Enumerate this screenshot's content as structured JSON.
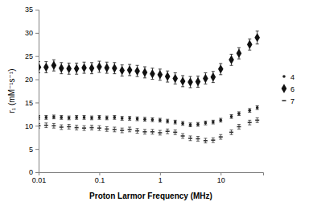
{
  "chart_data": {
    "type": "scatter",
    "x_label": "Proton Larmor Frequency (MHz)",
    "y_label": "r₁ (mM⁻¹s⁻¹)",
    "log": "x",
    "grid": false,
    "legend": "right",
    "xlim": [
      0.01,
      50
    ],
    "xticks": [
      0.01,
      0.1,
      1,
      10
    ],
    "ylim": [
      0,
      35
    ],
    "yticks": [
      0,
      5,
      10,
      15,
      20,
      25,
      30,
      35
    ],
    "x": [
      0.01,
      0.0133,
      0.0178,
      0.0237,
      0.0316,
      0.0422,
      0.0562,
      0.075,
      0.1,
      0.133,
      0.178,
      0.237,
      0.316,
      0.422,
      0.562,
      0.75,
      1,
      1.33,
      1.78,
      2.37,
      3.16,
      4.22,
      5.62,
      7.5,
      10,
      15,
      20,
      30,
      40
    ],
    "series": [
      {
        "name": "4",
        "color": "#222222",
        "marker": "circle",
        "values": [
          11.8,
          11.8,
          11.9,
          11.8,
          11.7,
          11.8,
          11.8,
          11.7,
          11.8,
          11.7,
          11.8,
          11.6,
          11.6,
          11.5,
          11.4,
          11.3,
          11.2,
          11.0,
          10.8,
          10.5,
          10.2,
          10.3,
          10.6,
          10.8,
          11.2,
          12.0,
          12.6,
          13.3,
          13.9
        ],
        "errors": [
          0.4,
          0.4,
          0.4,
          0.4,
          0.4,
          0.4,
          0.4,
          0.4,
          0.4,
          0.4,
          0.4,
          0.4,
          0.4,
          0.4,
          0.4,
          0.4,
          0.4,
          0.4,
          0.4,
          0.4,
          0.4,
          0.4,
          0.4,
          0.4,
          0.4,
          0.4,
          0.4,
          0.4,
          0.4
        ]
      },
      {
        "name": "6",
        "color": "#111111",
        "marker": "diamond",
        "values": [
          22.6,
          22.6,
          23.0,
          22.4,
          22.3,
          22.3,
          22.5,
          22.4,
          22.7,
          22.5,
          22.4,
          21.9,
          22.0,
          21.8,
          21.5,
          21.2,
          21.0,
          20.6,
          20.2,
          19.6,
          19.4,
          19.5,
          20.2,
          20.5,
          22.2,
          24.2,
          25.6,
          27.5,
          29.0
        ],
        "errors": [
          1.2,
          1.2,
          1.2,
          1.2,
          1.2,
          1.2,
          1.2,
          1.2,
          1.2,
          1.2,
          1.2,
          1.2,
          1.2,
          1.2,
          1.2,
          1.2,
          1.2,
          1.2,
          1.2,
          1.2,
          1.2,
          1.2,
          1.2,
          1.2,
          1.2,
          1.2,
          1.2,
          1.2,
          1.4
        ]
      },
      {
        "name": "7",
        "color": "#333333",
        "marker": "dash",
        "values": [
          10.0,
          10.1,
          10.0,
          9.7,
          9.8,
          9.6,
          9.5,
          9.6,
          9.5,
          9.3,
          9.2,
          9.0,
          9.2,
          8.9,
          8.7,
          8.7,
          8.5,
          8.8,
          8.6,
          7.8,
          7.3,
          7.2,
          6.8,
          6.9,
          7.6,
          8.6,
          9.8,
          10.7,
          11.2
        ],
        "errors": [
          0.5,
          0.5,
          0.5,
          0.5,
          0.5,
          0.5,
          0.5,
          0.5,
          0.5,
          0.5,
          0.5,
          0.5,
          0.5,
          0.5,
          0.5,
          0.5,
          0.5,
          0.5,
          0.5,
          0.5,
          0.5,
          0.5,
          0.5,
          0.5,
          0.5,
          0.5,
          0.5,
          0.5,
          0.5
        ]
      }
    ]
  }
}
